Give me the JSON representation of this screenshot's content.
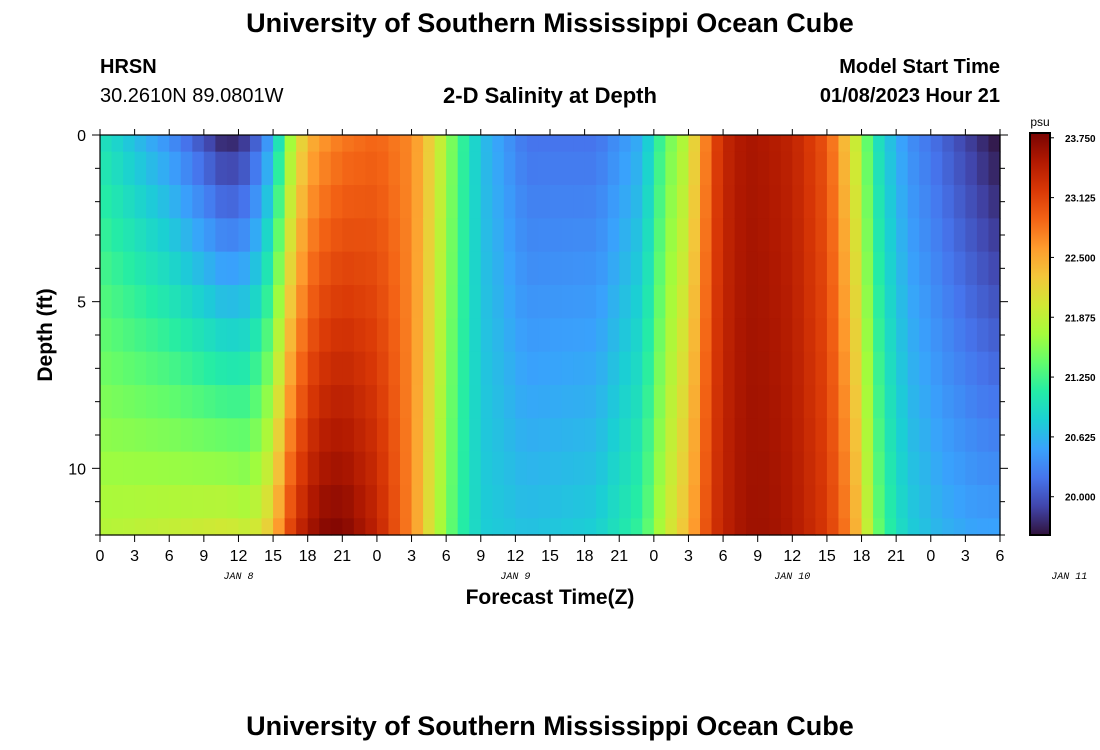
{
  "header": {
    "title": "University of Southern Mississippi Ocean Cube",
    "station": "HRSN",
    "coords": "30.2610N  89.0801W",
    "subtitle": "2-D Salinity at Depth",
    "model_start_label": "Model Start Time",
    "model_start_value": "01/08/2023 Hour 21"
  },
  "footer": {
    "title": "University of Southern Mississippi Ocean Cube"
  },
  "chart_data": {
    "type": "heatmap",
    "title": "2-D Salinity at Depth",
    "xlabel": "Forecast Time(Z)",
    "ylabel": "Depth (ft)",
    "x_unit": "hours since 2023-01-08 00Z",
    "xlim": [
      0,
      78
    ],
    "ylim": [
      12,
      0
    ],
    "x_ticks": [
      "0",
      "3",
      "6",
      "9",
      "12",
      "15",
      "18",
      "21",
      "0",
      "3",
      "6",
      "9",
      "12",
      "15",
      "18",
      "21",
      "0",
      "3",
      "6",
      "9",
      "12",
      "15",
      "18",
      "21",
      "0",
      "3",
      "6"
    ],
    "day_labels": [
      "JAN 8",
      "JAN 9",
      "JAN 10",
      "JAN 11"
    ],
    "y_ticks": [
      "0",
      "5",
      "10"
    ],
    "colorbar": {
      "unit": "psu",
      "min": 19.6,
      "max": 23.8,
      "ticks": [
        "23.750",
        "23.125",
        "22.500",
        "21.875",
        "21.250",
        "20.625",
        "20.000"
      ],
      "colors": [
        "#30123b",
        "#4145ab",
        "#4675ed",
        "#39a2fc",
        "#1bcfd4",
        "#24eca6",
        "#61fc6c",
        "#a4fc3b",
        "#d1e834",
        "#f3c63a",
        "#fe9b2d",
        "#f36315",
        "#d93806",
        "#b11901",
        "#7a0402"
      ]
    },
    "depths_ft": [
      0,
      1,
      2,
      3,
      4,
      5,
      6,
      7,
      8,
      9,
      10,
      11,
      12
    ],
    "time_keyframes_hours": [
      0,
      6,
      11,
      13,
      15,
      16,
      17,
      18,
      19,
      21,
      24,
      27,
      29,
      31,
      33,
      37,
      43,
      47,
      49,
      51,
      52,
      53,
      54,
      56,
      58,
      60,
      63,
      65,
      66,
      67,
      68,
      70,
      73,
      76,
      78
    ],
    "salinity_surface_psu": [
      21.0,
      20.4,
      19.7,
      19.9,
      20.6,
      21.4,
      22.0,
      22.4,
      22.6,
      22.8,
      22.9,
      22.7,
      22.1,
      21.3,
      20.7,
      20.2,
      20.2,
      20.6,
      21.4,
      21.9,
      22.5,
      23.0,
      23.35,
      23.55,
      23.5,
      23.4,
      23.0,
      22.2,
      21.7,
      21.1,
      20.8,
      20.4,
      20.1,
      19.8,
      19.6
    ],
    "salinity_bottom_psu": [
      21.8,
      21.9,
      22.0,
      21.9,
      22.3,
      22.9,
      23.3,
      23.5,
      23.7,
      23.75,
      23.4,
      22.7,
      21.9,
      21.2,
      20.8,
      20.7,
      20.8,
      21.2,
      21.9,
      22.4,
      22.8,
      23.2,
      23.4,
      23.6,
      23.6,
      23.5,
      23.2,
      22.7,
      22.2,
      21.6,
      21.2,
      20.8,
      20.6,
      20.5,
      20.5
    ]
  }
}
